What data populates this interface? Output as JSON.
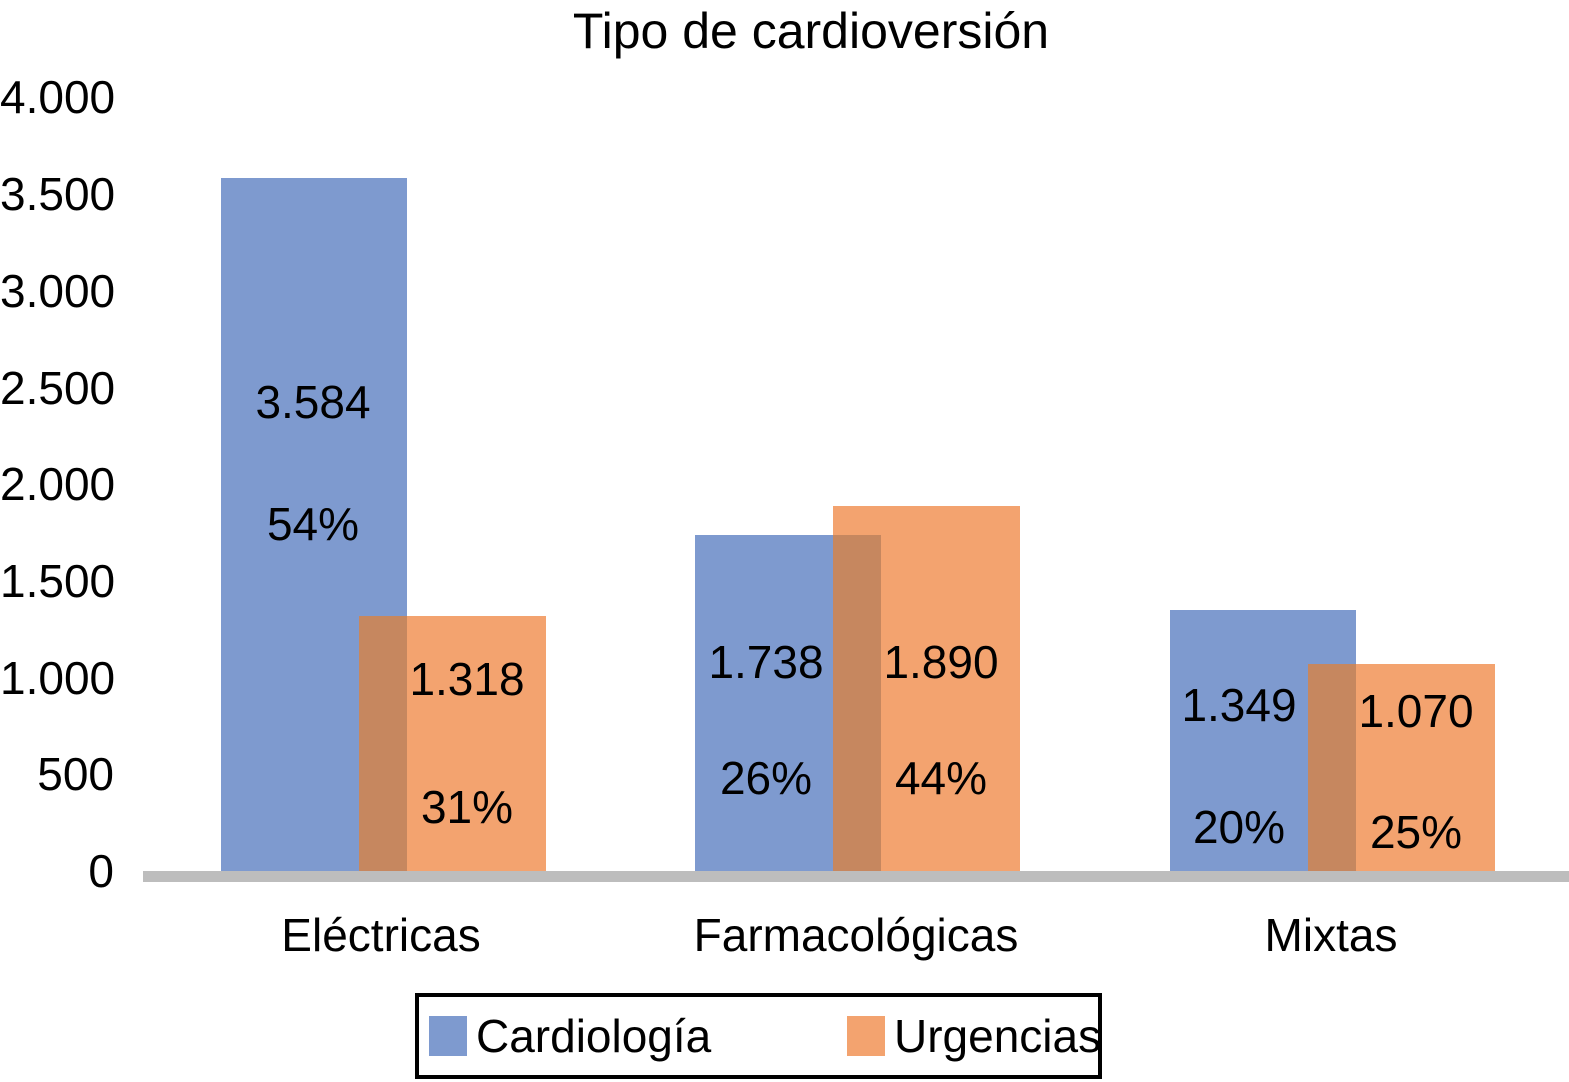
{
  "title": "Tipo de cardioversión",
  "colors": {
    "cardiologia_blue": "#7E9ACF",
    "urgencias_orange": "#F3A36F",
    "overlap_brown": "#C6875F",
    "axis_line_gray": "#BDBDBD",
    "text_black": "#000000",
    "legend_border": "#000000"
  },
  "y_axis": {
    "tick_labels": [
      "4.000",
      "3.500",
      "3.000",
      "2.500",
      "2.000",
      "1.500",
      "1.000",
      "500",
      "0"
    ]
  },
  "legend": {
    "items": [
      {
        "label": "Cardiología",
        "color": "#7E9ACF"
      },
      {
        "label": "Urgencias",
        "color": "#F3A36F"
      }
    ]
  },
  "chart_data": {
    "type": "bar",
    "title": "Tipo de cardioversión",
    "categories": [
      "Eléctricas",
      "Farmacológicas",
      "Mixtas"
    ],
    "series": [
      {
        "name": "Cardiología",
        "color": "#7E9ACF",
        "values": [
          3584,
          1738,
          1349
        ],
        "value_labels": [
          "3.584",
          "1.738",
          "1.349"
        ],
        "percent_labels": [
          "54%",
          "26%",
          "20%"
        ]
      },
      {
        "name": "Urgencias",
        "color": "#F3A36F",
        "values": [
          1318,
          1890,
          1070
        ],
        "value_labels": [
          "1.318",
          "1.890",
          "1.070"
        ],
        "percent_labels": [
          "31%",
          "44%",
          "25%"
        ]
      }
    ],
    "xlabel": "",
    "ylabel": "",
    "ylim": [
      0,
      4000
    ],
    "y_ticks": [
      0,
      500,
      1000,
      1500,
      2000,
      2500,
      3000,
      3500,
      4000
    ],
    "grid": false,
    "legend_position": "bottom",
    "bars_overlap": true,
    "overlap_color": "#C6875F"
  }
}
